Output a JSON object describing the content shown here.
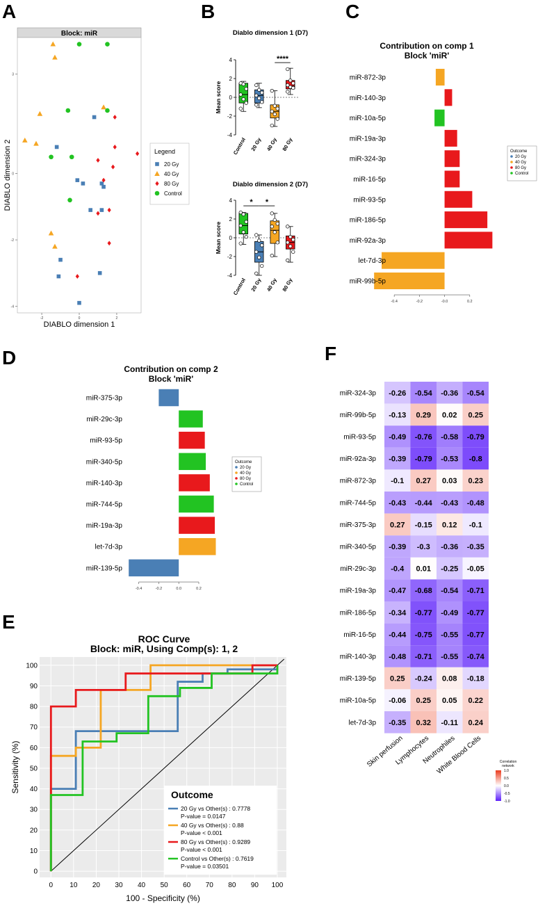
{
  "panel_labels": {
    "a": "A",
    "b": "B",
    "c": "C",
    "d": "D",
    "e": "E",
    "f": "F"
  },
  "colors": {
    "g20": "#4a7fb5",
    "g40": "#f5a623",
    "g80": "#e8191c",
    "ctrl": "#22c322"
  },
  "chart_data": [
    {
      "id": "A",
      "type": "scatter",
      "title": "Block: miR",
      "xlabel": "DIABLO dimension 1",
      "ylabel": "DIABLO dimension 2",
      "xlim": [
        -3.3,
        3.3
      ],
      "ylim": [
        -4.2,
        4.1
      ],
      "yticks": [
        {
          "v": 3,
          "label": "3"
        },
        {
          "v": 0,
          "label": "0"
        },
        {
          "v": -2,
          "label": "-2"
        },
        {
          "v": -4,
          "label": "-4"
        }
      ],
      "xticks": [
        {
          "v": -2,
          "label": "-2"
        },
        {
          "v": 0,
          "label": "0"
        },
        {
          "v": 2,
          "label": "2"
        }
      ],
      "legend": {
        "title": "Legend",
        "position": "right",
        "entries": [
          "20 Gy",
          "40 Gy",
          "80 Gy",
          "Control"
        ]
      },
      "series": [
        {
          "name": "20 Gy",
          "shape": "square",
          "points": [
            [
              0.8,
              1.7
            ],
            [
              -1.2,
              0.8
            ],
            [
              -0.1,
              -0.2
            ],
            [
              0.2,
              -0.3
            ],
            [
              1.2,
              -0.3
            ],
            [
              1.3,
              -0.4
            ],
            [
              0.6,
              -1.1
            ],
            [
              1.2,
              -1.1
            ],
            [
              -1.0,
              -2.6
            ],
            [
              -1.1,
              -3.1
            ],
            [
              1.1,
              -3.0
            ],
            [
              0.0,
              -3.9
            ]
          ]
        },
        {
          "name": "40 Gy",
          "shape": "triangle",
          "points": [
            [
              -1.4,
              3.9
            ],
            [
              -1.3,
              3.5
            ],
            [
              1.3,
              2.0
            ],
            [
              -2.1,
              1.8
            ],
            [
              -2.9,
              1.0
            ],
            [
              -2.3,
              0.9
            ],
            [
              -1.5,
              -1.8
            ],
            [
              -1.3,
              -2.2
            ]
          ]
        },
        {
          "name": "80 Gy",
          "shape": "diamond",
          "points": [
            [
              1.9,
              1.7
            ],
            [
              1.9,
              0.8
            ],
            [
              3.1,
              0.6
            ],
            [
              1.0,
              0.4
            ],
            [
              1.8,
              0.2
            ],
            [
              1.3,
              -0.2
            ],
            [
              1.6,
              -1.1
            ],
            [
              1.0,
              -1.2
            ],
            [
              1.6,
              -2.1
            ],
            [
              -0.1,
              -3.1
            ]
          ]
        },
        {
          "name": "Control",
          "shape": "circle",
          "points": [
            [
              0.0,
              3.9
            ],
            [
              1.5,
              3.9
            ],
            [
              -0.6,
              1.9
            ],
            [
              1.5,
              1.9
            ],
            [
              -1.5,
              0.5
            ],
            [
              -0.4,
              0.5
            ],
            [
              -0.5,
              -0.8
            ]
          ]
        }
      ]
    },
    {
      "id": "B1",
      "type": "boxplot",
      "title": "Diablo dimension 1 (D7)",
      "ylabel": "Mean score",
      "categories": [
        "Control",
        "20 Gy",
        "40 Gy",
        "80 Gy"
      ],
      "ylim": [
        -4,
        4
      ],
      "yticks": [
        {
          "v": 4,
          "label": "4"
        },
        {
          "v": 2,
          "label": "2"
        },
        {
          "v": 0,
          "label": "0"
        },
        {
          "v": -2,
          "label": "-2"
        },
        {
          "v": -4,
          "label": "-4"
        }
      ],
      "boxes": [
        {
          "min": -1.5,
          "q1": -0.6,
          "med": 0.3,
          "q3": 1.5,
          "max": 1.7,
          "points": [
            1.5,
            1.4,
            0.9,
            0.3,
            -0.2,
            -0.6,
            -1.2
          ]
        },
        {
          "min": -1.1,
          "q1": -0.6,
          "med": 0.2,
          "q3": 0.8,
          "max": 1.5,
          "points": [
            1.3,
            0.8,
            0.5,
            0.2,
            -0.1,
            -0.5,
            -0.8
          ]
        },
        {
          "min": -3.1,
          "q1": -2.2,
          "med": -1.5,
          "q3": -0.8,
          "max": 0.7,
          "points": [
            0.7,
            -0.9,
            -1.2,
            -1.5,
            -1.8,
            -2.3,
            -3.0
          ]
        },
        {
          "min": 0.3,
          "q1": 0.9,
          "med": 1.2,
          "q3": 1.8,
          "max": 3.1,
          "points": [
            3.0,
            1.8,
            1.5,
            1.3,
            1.1,
            1.0,
            0.6
          ]
        }
      ],
      "annotations": [
        {
          "from": 2,
          "to": 3,
          "label": "****",
          "y": 3.7
        }
      ]
    },
    {
      "id": "B2",
      "type": "boxplot",
      "title": "Diablo dimension 2 (D7)",
      "ylabel": "Mean score",
      "categories": [
        "Control",
        "20 Gy",
        "40 Gy",
        "80 Gy"
      ],
      "ylim": [
        -4,
        4
      ],
      "yticks": [
        {
          "v": 4,
          "label": "4"
        },
        {
          "v": 2,
          "label": "2"
        },
        {
          "v": 0,
          "label": "0"
        },
        {
          "v": -2,
          "label": "-2"
        },
        {
          "v": -4,
          "label": "-4"
        }
      ],
      "boxes": [
        {
          "min": -0.7,
          "q1": 0.4,
          "med": 1.3,
          "q3": 2.6,
          "max": 2.7,
          "points": [
            2.7,
            2.5,
            1.7,
            1.3,
            0.6,
            0.1,
            -0.6
          ]
        },
        {
          "min": -4.0,
          "q1": -2.6,
          "med": -1.5,
          "q3": -0.4,
          "max": 0.3,
          "points": [
            0.3,
            -0.3,
            -0.8,
            -1.5,
            -2.1,
            -3.0,
            -3.8
          ]
        },
        {
          "min": -2.0,
          "q1": -0.6,
          "med": 0.8,
          "q3": 1.8,
          "max": 2.6,
          "points": [
            2.6,
            1.9,
            1.5,
            1.2,
            0.6,
            -0.5,
            -1.9
          ]
        },
        {
          "min": -2.6,
          "q1": -1.2,
          "med": -0.5,
          "q3": 0.2,
          "max": 1.2,
          "points": [
            1.2,
            0.1,
            -0.2,
            -0.5,
            -0.9,
            -1.5,
            -2.4
          ]
        }
      ],
      "annotations": [
        {
          "from": 0,
          "to": 1,
          "label": "*",
          "y": 3.4
        },
        {
          "from": 1,
          "to": 2,
          "label": "*",
          "y": 3.4
        }
      ]
    },
    {
      "id": "C",
      "type": "bar",
      "orientation": "horizontal",
      "title": "Contribution on comp 1",
      "subtitle": "Block 'miR'",
      "xlim": [
        -0.55,
        0.4
      ],
      "xticks": [
        {
          "v": -0.4,
          "label": "-0.4"
        },
        {
          "v": -0.2,
          "label": "-0.2"
        },
        {
          "v": 0,
          "label": "-0.0"
        },
        {
          "v": 0.2,
          "label": "0.2"
        }
      ],
      "legend": {
        "title": "Outcome",
        "entries": [
          "20 Gy",
          "40 Gy",
          "80 Gy",
          "Control"
        ]
      },
      "categories": [
        "miR-872-3p",
        "miR-140-3p",
        "miR-10a-5p",
        "miR-19a-3p",
        "miR-324-3p",
        "miR-16-5p",
        "miR-93-5p",
        "miR-186-5p",
        "miR-92a-3p",
        "let-7d-3p",
        "miR-99b-5p"
      ],
      "values": [
        -0.07,
        0.06,
        -0.08,
        0.1,
        0.12,
        0.12,
        0.22,
        0.34,
        0.38,
        -0.5,
        -0.56
      ],
      "groups": [
        "40 Gy",
        "80 Gy",
        "Control",
        "80 Gy",
        "80 Gy",
        "80 Gy",
        "80 Gy",
        "80 Gy",
        "80 Gy",
        "40 Gy",
        "40 Gy"
      ]
    },
    {
      "id": "D",
      "type": "bar",
      "orientation": "horizontal",
      "title": "Contribution on comp 2",
      "subtitle": "Block 'miR'",
      "xlim": [
        -0.55,
        0.45
      ],
      "xticks": [
        {
          "v": -0.4,
          "label": "-0.4"
        },
        {
          "v": -0.2,
          "label": "-0.2"
        },
        {
          "v": 0,
          "label": "0.0"
        },
        {
          "v": 0.2,
          "label": "0.2"
        }
      ],
      "legend": {
        "title": "Outcome",
        "entries": [
          "20 Gy",
          "40 Gy",
          "80 Gy",
          "Control"
        ]
      },
      "categories": [
        "miR-375-3p",
        "miR-29c-3p",
        "miR-93-5p",
        "miR-340-5p",
        "miR-140-3p",
        "miR-744-5p",
        "miR-19a-3p",
        "let-7d-3p",
        "miR-139-5p"
      ],
      "values": [
        -0.2,
        0.24,
        0.26,
        0.27,
        0.31,
        0.35,
        0.36,
        0.37,
        -0.5
      ],
      "groups": [
        "20 Gy",
        "Control",
        "80 Gy",
        "Control",
        "80 Gy",
        "Control",
        "80 Gy",
        "40 Gy",
        "20 Gy"
      ]
    },
    {
      "id": "E",
      "type": "line",
      "subtype": "roc",
      "title": "ROC Curve",
      "subtitle": "Block: miR, Using Comp(s): 1, 2",
      "xlabel": "100 - Specificity (%)",
      "ylabel": "Sensitivity (%)",
      "xlim": [
        -5,
        104
      ],
      "ylim": [
        -3,
        104
      ],
      "ticks": [
        {
          "v": 0,
          "label": "0"
        },
        {
          "v": 10,
          "label": "10"
        },
        {
          "v": 20,
          "label": "20"
        },
        {
          "v": 30,
          "label": "30"
        },
        {
          "v": 40,
          "label": "40"
        },
        {
          "v": 50,
          "label": "50"
        },
        {
          "v": 60,
          "label": "60"
        },
        {
          "v": 70,
          "label": "70"
        },
        {
          "v": 80,
          "label": "80"
        },
        {
          "v": 90,
          "label": "90"
        },
        {
          "v": 100,
          "label": "100"
        }
      ],
      "legend": {
        "title": "Outcome",
        "position": "bottom-right"
      },
      "series": [
        {
          "name": "20 Gy",
          "label": "20 Gy vs Other(s) : 0.7778",
          "pvalue": "P-value = 0.0147",
          "points": [
            [
              0,
              0
            ],
            [
              0,
              40
            ],
            [
              11,
              40
            ],
            [
              11,
              68
            ],
            [
              56,
              68
            ],
            [
              56,
              92
            ],
            [
              67,
              92
            ],
            [
              67,
              96
            ],
            [
              78,
              96
            ],
            [
              78,
              98
            ],
            [
              100,
              98
            ],
            [
              100,
              100
            ]
          ]
        },
        {
          "name": "40 Gy",
          "label": "40 Gy vs Other(s) : 0.88",
          "pvalue": "P-value < 0.001",
          "points": [
            [
              0,
              0
            ],
            [
              0,
              56
            ],
            [
              11,
              56
            ],
            [
              11,
              60
            ],
            [
              22,
              60
            ],
            [
              22,
              88
            ],
            [
              44,
              88
            ],
            [
              44,
              100
            ],
            [
              100,
              100
            ]
          ]
        },
        {
          "name": "80 Gy",
          "label": "80 Gy vs Other(s) : 0.9289",
          "pvalue": "P-value < 0.001",
          "points": [
            [
              0,
              0
            ],
            [
              0,
              80
            ],
            [
              11,
              80
            ],
            [
              11,
              88
            ],
            [
              33,
              88
            ],
            [
              33,
              96
            ],
            [
              89,
              96
            ],
            [
              89,
              100
            ],
            [
              100,
              100
            ]
          ]
        },
        {
          "name": "Control",
          "label": "Control vs Other(s) : 0.7619",
          "pvalue": "P-value = 0.03501",
          "points": [
            [
              0,
              0
            ],
            [
              0,
              37
            ],
            [
              14,
              37
            ],
            [
              14,
              63
            ],
            [
              29,
              63
            ],
            [
              29,
              67
            ],
            [
              43,
              67
            ],
            [
              43,
              85
            ],
            [
              57,
              85
            ],
            [
              57,
              89
            ],
            [
              71,
              89
            ],
            [
              71,
              96
            ],
            [
              100,
              96
            ],
            [
              100,
              100
            ]
          ]
        }
      ],
      "diagonal": true
    },
    {
      "id": "F",
      "type": "heatmap",
      "legend_title": "Correlation network",
      "legend_ticks": [
        {
          "v": 1,
          "label": "1.0"
        },
        {
          "v": 0.5,
          "label": "0.5"
        },
        {
          "v": 0,
          "label": "0.0"
        },
        {
          "v": -0.5,
          "label": "-0.5"
        },
        {
          "v": -1,
          "label": "-1.0"
        }
      ],
      "columns": [
        "Skin perfusion",
        "Lymphocytes",
        "Neutrophiles",
        "White Blood Cells"
      ],
      "rows": [
        "miR-324-3p",
        "miR-99b-5p",
        "miR-93-5p",
        "miR-92a-3p",
        "miR-872-3p",
        "miR-744-5p",
        "miR-375-3p",
        "miR-340-5p",
        "miR-29c-3p",
        "miR-19a-3p",
        "miR-186-5p",
        "miR-16-5p",
        "miR-140-3p",
        "miR-139-5p",
        "miR-10a-5p",
        "let-7d-3p"
      ],
      "values": [
        [
          -0.26,
          -0.54,
          -0.36,
          -0.54
        ],
        [
          -0.13,
          0.29,
          0.02,
          0.25
        ],
        [
          -0.49,
          -0.76,
          -0.58,
          -0.79
        ],
        [
          -0.39,
          -0.79,
          -0.53,
          -0.8
        ],
        [
          -0.1,
          0.27,
          0.03,
          0.23
        ],
        [
          -0.43,
          -0.44,
          -0.43,
          -0.48
        ],
        [
          0.27,
          -0.15,
          0.12,
          -0.1
        ],
        [
          -0.39,
          -0.3,
          -0.36,
          -0.35
        ],
        [
          -0.4,
          0.01,
          -0.25,
          -0.05
        ],
        [
          -0.47,
          -0.68,
          -0.54,
          -0.71
        ],
        [
          -0.34,
          -0.77,
          -0.49,
          -0.77
        ],
        [
          -0.44,
          -0.75,
          -0.55,
          -0.77
        ],
        [
          -0.48,
          -0.71,
          -0.55,
          -0.74
        ],
        [
          0.25,
          -0.24,
          0.08,
          -0.18
        ],
        [
          -0.06,
          0.25,
          0.05,
          0.22
        ],
        [
          -0.35,
          0.32,
          -0.11,
          0.24
        ]
      ]
    }
  ]
}
